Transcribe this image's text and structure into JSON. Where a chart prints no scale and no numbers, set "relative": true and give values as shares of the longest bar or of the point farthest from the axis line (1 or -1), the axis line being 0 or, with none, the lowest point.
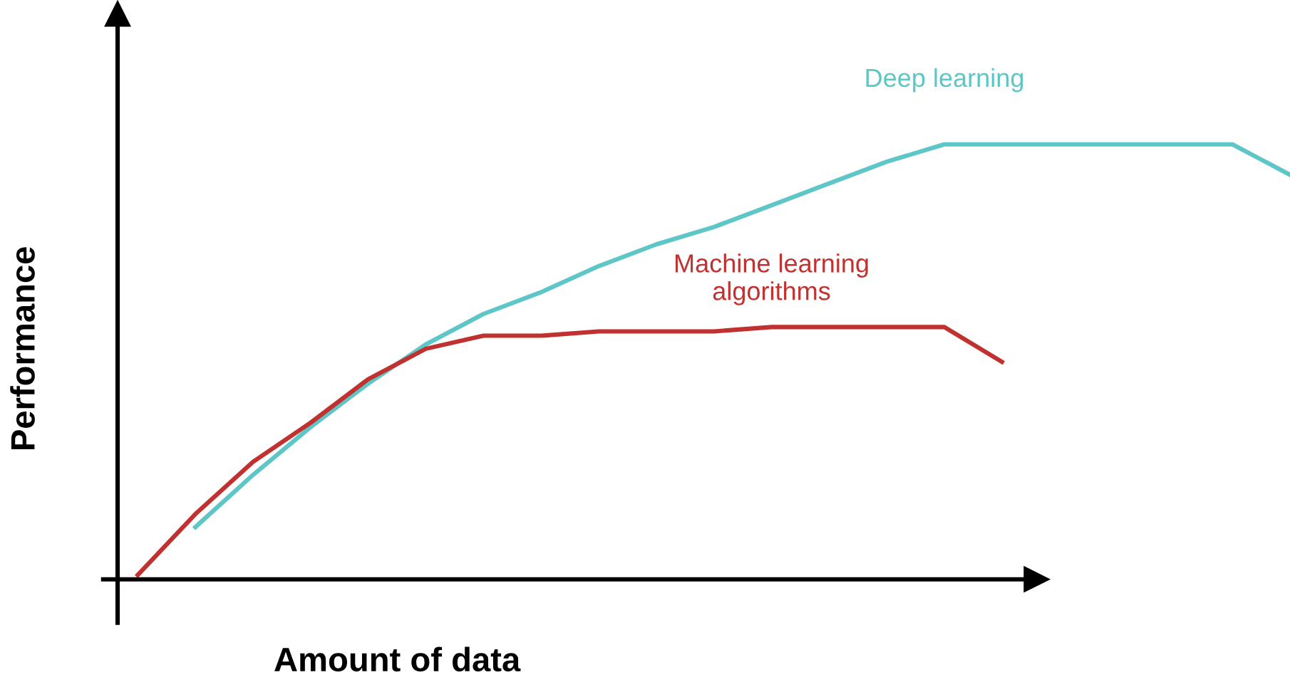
{
  "chart_data": {
    "type": "line",
    "relative": true,
    "xlabel": "Amount of data",
    "ylabel": "Performance",
    "legend": false,
    "marker": "none",
    "line_style": "solid",
    "categories": [
      null,
      null,
      null,
      null,
      null,
      null,
      null,
      null,
      null,
      null,
      null,
      null,
      null,
      null,
      null,
      null,
      null,
      null,
      null,
      null,
      null
    ],
    "series": [
      {
        "name": "Deep learning",
        "color": "#5ec6c6",
        "values": [
          null,
          0.12,
          0.24,
          0.35,
          0.45,
          0.54,
          0.61,
          0.66,
          0.72,
          0.77,
          0.81,
          0.86,
          0.91,
          0.96,
          1.0,
          1.0,
          1.0,
          1.0,
          1.0,
          1.0,
          0.93
        ]
      },
      {
        "name": "Machine learning\nalgorithms",
        "color": "#c0312f",
        "values": [
          0.01,
          0.15,
          0.27,
          0.36,
          0.46,
          0.53,
          0.56,
          0.56,
          0.57,
          0.57,
          0.57,
          0.58,
          0.58,
          0.58,
          0.58,
          0.5,
          null,
          null,
          null,
          null,
          null
        ]
      }
    ]
  }
}
